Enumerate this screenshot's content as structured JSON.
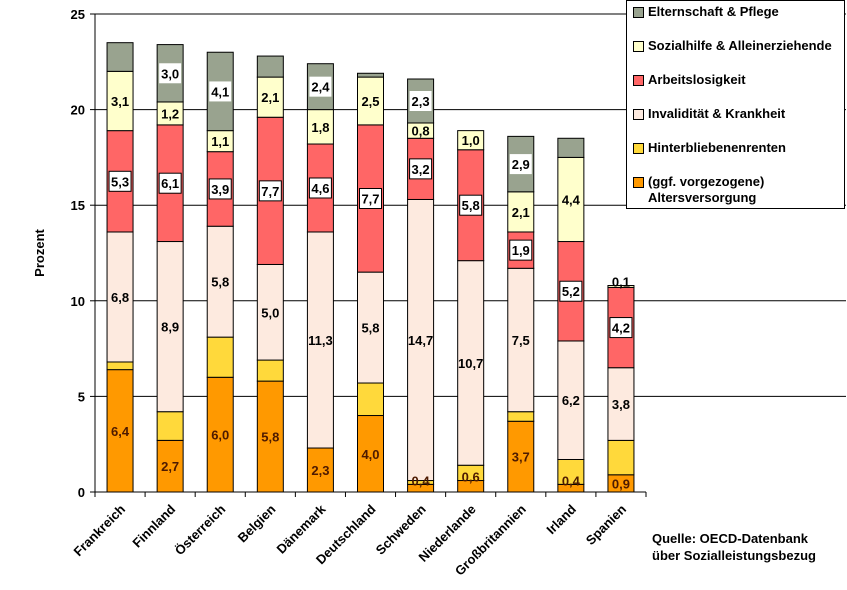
{
  "chart_data": {
    "type": "bar",
    "stacked": true,
    "title": "",
    "xlabel": "",
    "ylabel": "Prozent",
    "ylim": [
      0,
      25
    ],
    "yticks": [
      0,
      5,
      10,
      15,
      20,
      25
    ],
    "grid": true,
    "legend_position": "top-right",
    "categories": [
      "Frankreich",
      "Finnland",
      "Österreich",
      "Belgien",
      "Dänemark",
      "Deutschland",
      "Schweden",
      "Niederlande",
      "Großbritannien",
      "Irland",
      "Spanien"
    ],
    "series": [
      {
        "name": "(ggf. vorgezogene) Altersversorgung",
        "color": "#FF9900",
        "values": [
          6.4,
          2.7,
          6.0,
          5.8,
          2.3,
          4.0,
          0.4,
          0.6,
          3.7,
          0.4,
          0.9
        ],
        "labels": [
          "6,4",
          "2,7",
          "6,0",
          "5,8",
          "2,3",
          "4,0",
          "0,4",
          "0,6",
          "3,7",
          "0,4",
          "0,9"
        ]
      },
      {
        "name": "Hinterbliebenenrenten",
        "color": "#FFD93B",
        "values": [
          0.4,
          1.5,
          2.1,
          1.1,
          0.0,
          1.7,
          0.2,
          0.8,
          0.5,
          1.3,
          1.8
        ],
        "labels": [
          "",
          "",
          "",
          "",
          "",
          "",
          "",
          "",
          "",
          "",
          ""
        ]
      },
      {
        "name": "Invalidität & Krankheit",
        "color": "#FDEADF",
        "values": [
          6.8,
          8.9,
          5.8,
          5.0,
          11.3,
          5.8,
          14.7,
          10.7,
          7.5,
          6.2,
          3.8
        ],
        "labels": [
          "6,8",
          "8,9",
          "5,8",
          "5,0",
          "11,3",
          "5,8",
          "14,7",
          "10,7",
          "7,5",
          "6,2",
          "3,8"
        ]
      },
      {
        "name": "Arbeitslosigkeit",
        "color": "#FF6666",
        "values": [
          5.3,
          6.1,
          3.9,
          7.7,
          4.6,
          7.7,
          3.2,
          5.8,
          1.9,
          5.2,
          4.2
        ],
        "labels": [
          "5,3",
          "6,1",
          "3,9",
          "7,7",
          "4,6",
          "7,7",
          "3,2",
          "5,8",
          "1,9",
          "5,2",
          "4,2"
        ]
      },
      {
        "name": "Sozialhilfe & Alleinerziehende",
        "color": "#FFFFCC",
        "values": [
          3.1,
          1.2,
          1.1,
          2.1,
          1.8,
          2.5,
          0.8,
          1.0,
          2.1,
          4.4,
          0.1
        ],
        "labels": [
          "3,1",
          "1,2",
          "1,1",
          "2,1",
          "1,8",
          "2,5",
          "0,8",
          "1,0",
          "2,1",
          "4,4",
          "0,1"
        ]
      },
      {
        "name": "Elternschaft & Pflege",
        "color": "#99A38F",
        "values": [
          1.5,
          3.0,
          4.1,
          1.1,
          2.4,
          0.2,
          2.3,
          0.0,
          2.9,
          1.0,
          0.0
        ],
        "labels": [
          "",
          "3,0",
          "4,1",
          "",
          "2,4",
          "",
          "2,3",
          "",
          "2,9",
          "",
          ""
        ]
      }
    ],
    "boxed_label_series": [
      "Arbeitslosigkeit",
      "Elternschaft & Pflege"
    ]
  },
  "legend": {
    "items": [
      {
        "label": "Elternschaft & Pflege",
        "color": "#99A38F"
      },
      {
        "label": "Sozialhilfe & Alleinerziehende",
        "color": "#FFFFCC"
      },
      {
        "label": "Arbeitslosigkeit",
        "color": "#FF6666"
      },
      {
        "label": "Invalidität & Krankheit",
        "color": "#FDEADF"
      },
      {
        "label": "Hinterbliebenenrenten",
        "color": "#FFD93B"
      },
      {
        "label": "(ggf. vorgezogene)\nAltersversorgung",
        "color": "#FF9900"
      }
    ]
  },
  "source": {
    "line1": "Quelle:  OECD-Datenbank",
    "line2": "über Sozialleistungsbezug"
  }
}
